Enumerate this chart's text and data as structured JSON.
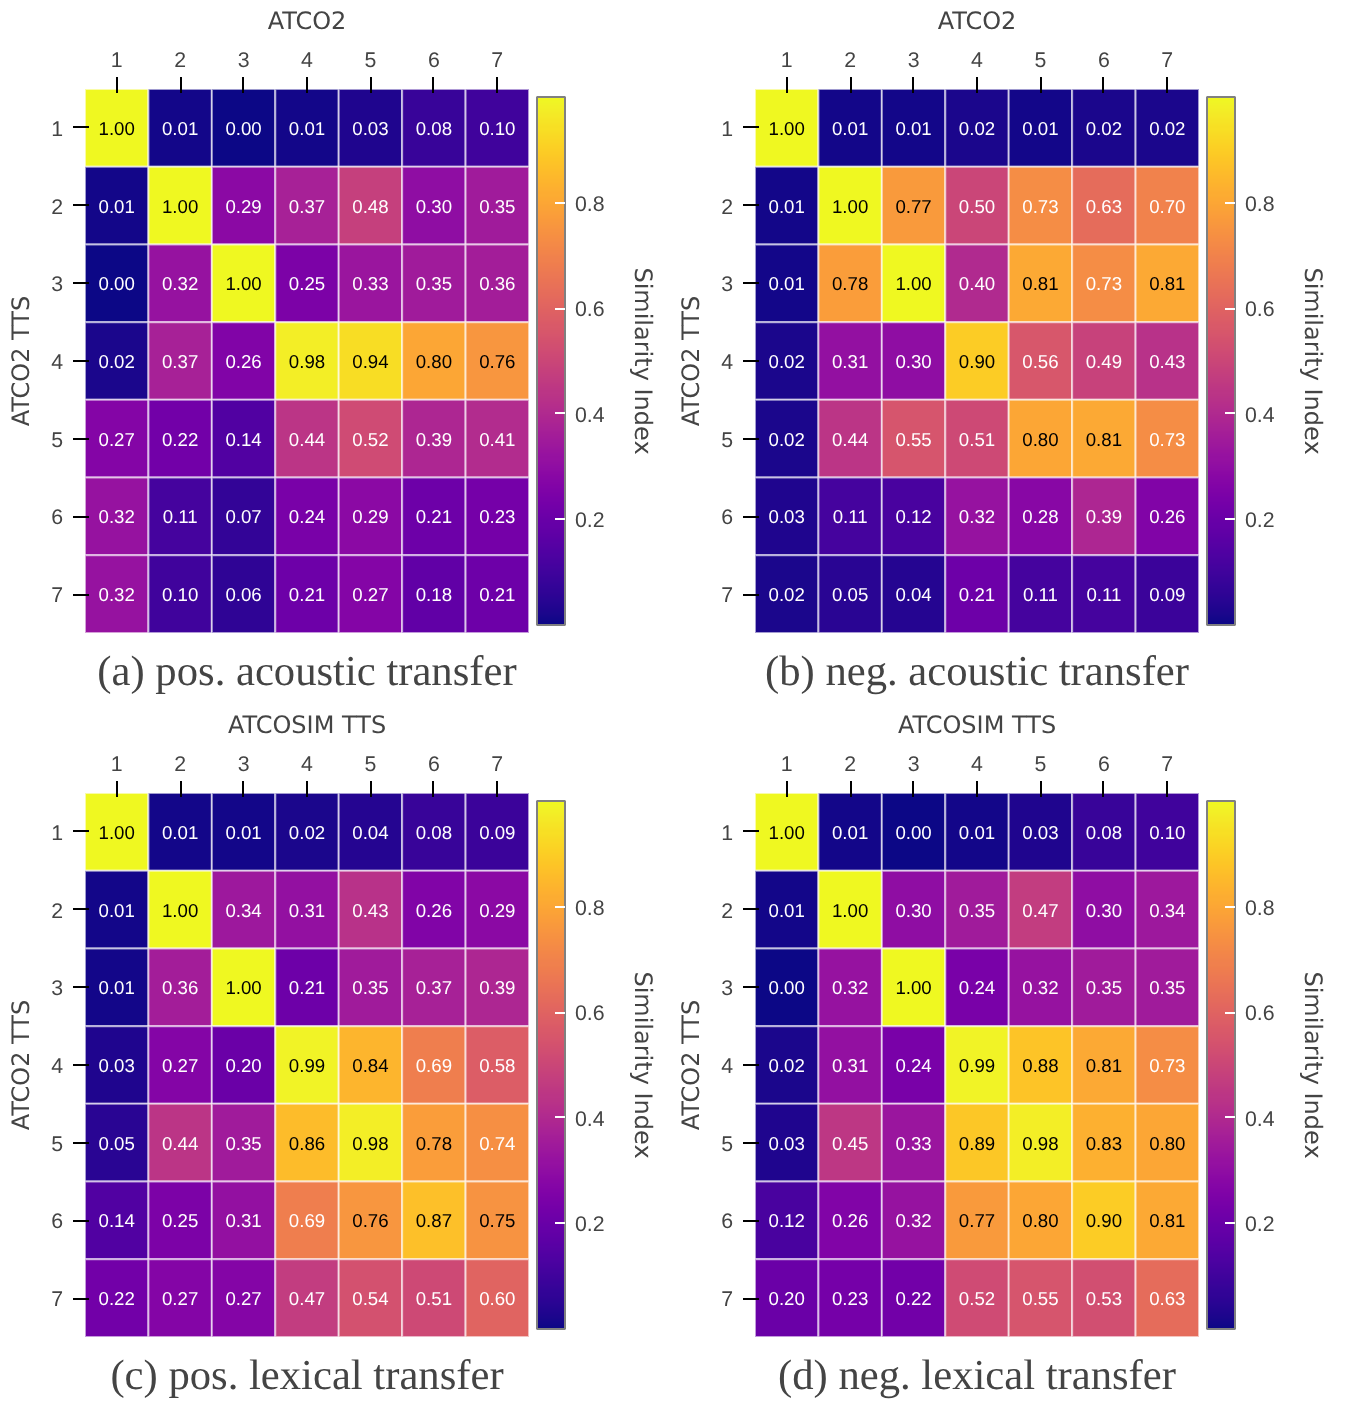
{
  "chart_data": [
    {
      "type": "heatmap",
      "title": "(a) pos. acoustic transfer",
      "xlabel": "ATCO2",
      "ylabel": "ATCO2 TTS",
      "clabel": "Similarity Index",
      "categories": [
        "1",
        "2",
        "3",
        "4",
        "5",
        "6",
        "7"
      ],
      "y_categories": [
        "1",
        "2",
        "3",
        "4",
        "5",
        "6",
        "7"
      ],
      "cells": [
        [
          1.0,
          0.01,
          0.0,
          0.01,
          0.03,
          0.08,
          0.1
        ],
        [
          0.01,
          1.0,
          0.29,
          0.37,
          0.48,
          0.3,
          0.35
        ],
        [
          0.0,
          0.32,
          1.0,
          0.25,
          0.33,
          0.35,
          0.36
        ],
        [
          0.02,
          0.37,
          0.26,
          0.98,
          0.94,
          0.8,
          0.76
        ],
        [
          0.27,
          0.22,
          0.14,
          0.44,
          0.52,
          0.39,
          0.41
        ],
        [
          0.32,
          0.11,
          0.07,
          0.24,
          0.29,
          0.21,
          0.23
        ],
        [
          0.32,
          0.1,
          0.06,
          0.21,
          0.27,
          0.18,
          0.21
        ]
      ],
      "cell_labels": [
        [
          "1.00",
          "0.01",
          "0.00",
          "0.01",
          "0.03",
          "0.08",
          "0.10"
        ],
        [
          "0.01",
          "1.00",
          "0.29",
          "0.37",
          "0.48",
          "0.30",
          "0.35"
        ],
        [
          "0.00",
          "0.32",
          "1.00",
          "0.25",
          "0.33",
          "0.35",
          "0.36"
        ],
        [
          "0.02",
          "0.37",
          "0.26",
          "0.98",
          "0.94",
          "0.80",
          "0.76"
        ],
        [
          "0.27",
          "0.22",
          "0.14",
          "0.44",
          "0.52",
          "0.39",
          "0.41"
        ],
        [
          "0.32",
          "0.11",
          "0.07",
          "0.24",
          "0.29",
          "0.21",
          "0.23"
        ],
        [
          "0.32",
          "0.10",
          "0.06",
          "0.21",
          "0.27",
          "0.18",
          "0.21"
        ]
      ],
      "clim": [
        0,
        1
      ],
      "cticks": [
        0.2,
        0.4,
        0.6,
        0.8
      ]
    },
    {
      "type": "heatmap",
      "title": "(b) neg. acoustic transfer",
      "xlabel": "ATCO2",
      "ylabel": "ATCO2 TTS",
      "clabel": "Similarity Index",
      "categories": [
        "1",
        "2",
        "3",
        "4",
        "5",
        "6",
        "7"
      ],
      "y_categories": [
        "1",
        "2",
        "3",
        "4",
        "5",
        "6",
        "7"
      ],
      "cells": [
        [
          1.0,
          0.01,
          0.01,
          0.02,
          0.01,
          0.02,
          0.02
        ],
        [
          0.01,
          1.0,
          0.77,
          0.5,
          0.73,
          0.63,
          0.7
        ],
        [
          0.01,
          0.78,
          1.0,
          0.4,
          0.81,
          0.73,
          0.81
        ],
        [
          0.02,
          0.31,
          0.3,
          0.9,
          0.56,
          0.49,
          0.43
        ],
        [
          0.02,
          0.44,
          0.55,
          0.51,
          0.8,
          0.81,
          0.73
        ],
        [
          0.03,
          0.11,
          0.12,
          0.32,
          0.28,
          0.39,
          0.26
        ],
        [
          0.02,
          0.05,
          0.04,
          0.21,
          0.11,
          0.11,
          0.09
        ]
      ],
      "cell_labels": [
        [
          "1.00",
          "0.01",
          "0.01",
          "0.02",
          "0.01",
          "0.02",
          "0.02"
        ],
        [
          "0.01",
          "1.00",
          "0.77",
          "0.50",
          "0.73",
          "0.63",
          "0.70"
        ],
        [
          "0.01",
          "0.78",
          "1.00",
          "0.40",
          "0.81",
          "0.73",
          "0.81"
        ],
        [
          "0.02",
          "0.31",
          "0.30",
          "0.90",
          "0.56",
          "0.49",
          "0.43"
        ],
        [
          "0.02",
          "0.44",
          "0.55",
          "0.51",
          "0.80",
          "0.81",
          "0.73"
        ],
        [
          "0.03",
          "0.11",
          "0.12",
          "0.32",
          "0.28",
          "0.39",
          "0.26"
        ],
        [
          "0.02",
          "0.05",
          "0.04",
          "0.21",
          "0.11",
          "0.11",
          "0.09"
        ]
      ],
      "clim": [
        0,
        1
      ],
      "cticks": [
        0.2,
        0.4,
        0.6,
        0.8
      ]
    },
    {
      "type": "heatmap",
      "title": "(c) pos. lexical transfer",
      "xlabel": "ATCOSIM TTS",
      "ylabel": "ATCO2 TTS",
      "clabel": "Similarity Index",
      "categories": [
        "1",
        "2",
        "3",
        "4",
        "5",
        "6",
        "7"
      ],
      "y_categories": [
        "1",
        "2",
        "3",
        "4",
        "5",
        "6",
        "7"
      ],
      "cells": [
        [
          1.0,
          0.01,
          0.01,
          0.02,
          0.04,
          0.08,
          0.09
        ],
        [
          0.01,
          1.0,
          0.34,
          0.31,
          0.43,
          0.26,
          0.29
        ],
        [
          0.01,
          0.36,
          1.0,
          0.21,
          0.35,
          0.37,
          0.39
        ],
        [
          0.03,
          0.27,
          0.2,
          0.99,
          0.84,
          0.69,
          0.58
        ],
        [
          0.05,
          0.44,
          0.35,
          0.86,
          0.98,
          0.78,
          0.74
        ],
        [
          0.14,
          0.25,
          0.31,
          0.69,
          0.76,
          0.87,
          0.75
        ],
        [
          0.22,
          0.27,
          0.27,
          0.47,
          0.54,
          0.51,
          0.6
        ]
      ],
      "cell_labels": [
        [
          "1.00",
          "0.01",
          "0.01",
          "0.02",
          "0.04",
          "0.08",
          "0.09"
        ],
        [
          "0.01",
          "1.00",
          "0.34",
          "0.31",
          "0.43",
          "0.26",
          "0.29"
        ],
        [
          "0.01",
          "0.36",
          "1.00",
          "0.21",
          "0.35",
          "0.37",
          "0.39"
        ],
        [
          "0.03",
          "0.27",
          "0.20",
          "0.99",
          "0.84",
          "0.69",
          "0.58"
        ],
        [
          "0.05",
          "0.44",
          "0.35",
          "0.86",
          "0.98",
          "0.78",
          "0.74"
        ],
        [
          "0.14",
          "0.25",
          "0.31",
          "0.69",
          "0.76",
          "0.87",
          "0.75"
        ],
        [
          "0.22",
          "0.27",
          "0.27",
          "0.47",
          "0.54",
          "0.51",
          "0.60"
        ]
      ],
      "clim": [
        0,
        1
      ],
      "cticks": [
        0.2,
        0.4,
        0.6,
        0.8
      ]
    },
    {
      "type": "heatmap",
      "title": "(d) neg. lexical transfer",
      "xlabel": "ATCOSIM TTS",
      "ylabel": "ATCO2 TTS",
      "clabel": "Similarity Index",
      "categories": [
        "1",
        "2",
        "3",
        "4",
        "5",
        "6",
        "7"
      ],
      "y_categories": [
        "1",
        "2",
        "3",
        "4",
        "5",
        "6",
        "7"
      ],
      "cells": [
        [
          1.0,
          0.01,
          0.0,
          0.01,
          0.03,
          0.08,
          0.1
        ],
        [
          0.01,
          1.0,
          0.3,
          0.35,
          0.47,
          0.3,
          0.34
        ],
        [
          0.0,
          0.32,
          1.0,
          0.24,
          0.32,
          0.35,
          0.35
        ],
        [
          0.02,
          0.31,
          0.24,
          0.99,
          0.88,
          0.81,
          0.73
        ],
        [
          0.03,
          0.45,
          0.33,
          0.89,
          0.98,
          0.83,
          0.8
        ],
        [
          0.12,
          0.26,
          0.32,
          0.77,
          0.8,
          0.9,
          0.81
        ],
        [
          0.2,
          0.23,
          0.22,
          0.52,
          0.55,
          0.53,
          0.63
        ]
      ],
      "cell_labels": [
        [
          "1.00",
          "0.01",
          "0.00",
          "0.01",
          "0.03",
          "0.08",
          "0.10"
        ],
        [
          "0.01",
          "1.00",
          "0.30",
          "0.35",
          "0.47",
          "0.30",
          "0.34"
        ],
        [
          "0.00",
          "0.32",
          "1.00",
          "0.24",
          "0.32",
          "0.35",
          "0.35"
        ],
        [
          "0.02",
          "0.31",
          "0.24",
          "0.99",
          "0.88",
          "0.81",
          "0.73"
        ],
        [
          "0.03",
          "0.45",
          "0.33",
          "0.89",
          "0.98",
          "0.83",
          "0.80"
        ],
        [
          "0.12",
          "0.26",
          "0.32",
          "0.77",
          "0.80",
          "0.90",
          "0.81"
        ],
        [
          "0.20",
          "0.23",
          "0.22",
          "0.52",
          "0.55",
          "0.53",
          "0.63"
        ]
      ],
      "clim": [
        0,
        1
      ],
      "cticks": [
        0.2,
        0.4,
        0.6,
        0.8
      ]
    }
  ]
}
